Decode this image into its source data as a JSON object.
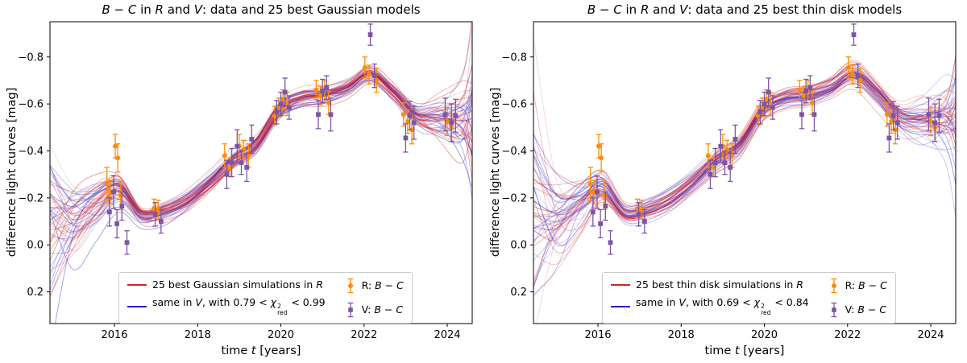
{
  "chart_data": {
    "type": "line+scatter",
    "xlabel_html": "time <i>t</i> [years]",
    "ylabel_html": "difference light curves [mag]",
    "xlim": [
      2014.45,
      2024.6
    ],
    "ylim": [
      -0.95,
      0.335
    ],
    "y_axis_inverted": true,
    "grid": false,
    "xticks": [
      2016,
      2018,
      2020,
      2022,
      2024
    ],
    "xtick_labels": [
      "2016",
      "2018",
      "2020",
      "2022",
      "2024"
    ],
    "yticks": [
      -0.8,
      -0.6,
      -0.4,
      -0.2,
      0.0,
      0.2
    ],
    "ytick_labels": [
      "−0.8",
      "−0.6",
      "−0.4",
      "−0.2",
      "0.0",
      "0.2"
    ],
    "n_models": 25,
    "legend_position": "lower center",
    "colors": {
      "sim_R": "#d62020",
      "sim_V": "#1f1fd0",
      "data_R": "#ff8c00",
      "data_V": "#7d54a6"
    },
    "model_trend": {
      "x": [
        2014.45,
        2015.0,
        2015.5,
        2015.9,
        2016.1,
        2016.45,
        2016.8,
        2017.1,
        2017.5,
        2018.0,
        2018.5,
        2018.9,
        2019.3,
        2019.7,
        2020.0,
        2020.4,
        2020.8,
        2021.2,
        2021.6,
        2022.0,
        2022.3,
        2022.7,
        2023.1,
        2023.5,
        2024.0,
        2024.6
      ],
      "y": [
        -0.13,
        -0.115,
        -0.17,
        -0.23,
        -0.24,
        -0.135,
        -0.125,
        -0.14,
        -0.16,
        -0.22,
        -0.3,
        -0.37,
        -0.4,
        -0.5,
        -0.585,
        -0.62,
        -0.645,
        -0.635,
        -0.67,
        -0.73,
        -0.725,
        -0.65,
        -0.56,
        -0.525,
        -0.53,
        -0.52
      ]
    },
    "series": {
      "R": {
        "label_html": "R: <i>B</i> − <i>C</i>",
        "marker": "circle",
        "points": [
          [
            2015.82,
            -0.26,
            0.07
          ],
          [
            2015.9,
            -0.225,
            0.05
          ],
          [
            2016.02,
            -0.42,
            0.05
          ],
          [
            2016.08,
            -0.37,
            0.06
          ],
          [
            2016.15,
            -0.21,
            0.06
          ],
          [
            2016.95,
            -0.155,
            0.04
          ],
          [
            2017.05,
            -0.15,
            0.04
          ],
          [
            2018.65,
            -0.38,
            0.05
          ],
          [
            2018.78,
            -0.33,
            0.04
          ],
          [
            2019.0,
            -0.42,
            0.05
          ],
          [
            2019.1,
            -0.405,
            0.04
          ],
          [
            2019.22,
            -0.38,
            0.05
          ],
          [
            2019.85,
            -0.55,
            0.04
          ],
          [
            2019.95,
            -0.585,
            0.04
          ],
          [
            2020.05,
            -0.62,
            0.04
          ],
          [
            2020.15,
            -0.6,
            0.05
          ],
          [
            2020.85,
            -0.66,
            0.04
          ],
          [
            2020.95,
            -0.635,
            0.04
          ],
          [
            2021.05,
            -0.66,
            0.04
          ],
          [
            2021.15,
            -0.605,
            0.05
          ],
          [
            2022.02,
            -0.755,
            0.045
          ],
          [
            2022.12,
            -0.725,
            0.04
          ],
          [
            2022.3,
            -0.7,
            0.05
          ],
          [
            2022.95,
            -0.555,
            0.05
          ],
          [
            2023.05,
            -0.525,
            0.05
          ],
          [
            2023.15,
            -0.49,
            0.06
          ],
          [
            2024.0,
            -0.525,
            0.06
          ],
          [
            2024.1,
            -0.5,
            0.06
          ]
        ]
      },
      "V": {
        "label_html": "V: <i>B</i> − <i>C</i>",
        "marker": "square",
        "points": [
          [
            2015.88,
            -0.14,
            0.06
          ],
          [
            2015.98,
            -0.225,
            0.07
          ],
          [
            2016.06,
            -0.09,
            0.06
          ],
          [
            2016.18,
            -0.165,
            0.06
          ],
          [
            2016.3,
            -0.01,
            0.05
          ],
          [
            2016.98,
            -0.13,
            0.05
          ],
          [
            2017.12,
            -0.1,
            0.05
          ],
          [
            2018.7,
            -0.3,
            0.06
          ],
          [
            2018.82,
            -0.35,
            0.06
          ],
          [
            2018.95,
            -0.42,
            0.07
          ],
          [
            2019.05,
            -0.35,
            0.05
          ],
          [
            2019.18,
            -0.33,
            0.06
          ],
          [
            2019.3,
            -0.45,
            0.06
          ],
          [
            2019.9,
            -0.565,
            0.05
          ],
          [
            2020.0,
            -0.6,
            0.05
          ],
          [
            2020.1,
            -0.65,
            0.06
          ],
          [
            2020.2,
            -0.585,
            0.05
          ],
          [
            2020.9,
            -0.555,
            0.06
          ],
          [
            2021.0,
            -0.655,
            0.05
          ],
          [
            2021.1,
            -0.67,
            0.05
          ],
          [
            2021.2,
            -0.555,
            0.07
          ],
          [
            2022.15,
            -0.895,
            0.045
          ],
          [
            2022.25,
            -0.72,
            0.05
          ],
          [
            2023.0,
            -0.455,
            0.06
          ],
          [
            2023.1,
            -0.55,
            0.06
          ],
          [
            2023.2,
            -0.52,
            0.07
          ],
          [
            2023.95,
            -0.555,
            0.07
          ],
          [
            2024.1,
            -0.52,
            0.08
          ],
          [
            2024.2,
            -0.55,
            0.07
          ]
        ]
      }
    },
    "panels": [
      {
        "title_html": "<i>B</i> − <i>C</i> in <i>R</i> and <i>V</i>: data and 25 best Gaussian models",
        "legend_sim_R_html": "25 best Gaussian simulations in <i>R</i>",
        "legend_sim_V_html": "same in <i>V</i>, with 0.79 &lt; <i>χ</i><span class='supsub'><sup>2</sup><sub>red</sub></span> &lt; 0.99",
        "chi2_red_range": [
          0.79,
          0.99
        ],
        "model_type": "Gaussian",
        "seed": 11
      },
      {
        "title_html": "<i>B</i> − <i>C</i> in <i>R</i> and <i>V</i>: data and 25 best thin disk models",
        "legend_sim_R_html": "25 best thin disk simulations in <i>R</i>",
        "legend_sim_V_html": "same in <i>V</i>, with 0.69 &lt; <i>χ</i><span class='supsub'><sup>2</sup><sub>red</sub></span> &lt; 0.84",
        "chi2_red_range": [
          0.69,
          0.84
        ],
        "model_type": "thin disk",
        "seed": 77
      }
    ]
  }
}
